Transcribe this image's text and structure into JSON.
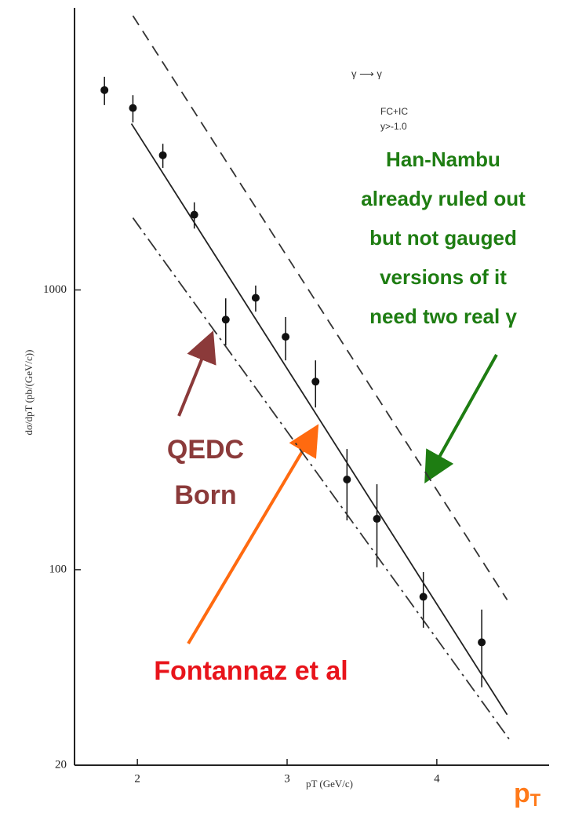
{
  "chart_data": {
    "type": "scatter",
    "y_label": "dσ/dpT   (pb/(GeV/c))",
    "x_label": "pT   (GeV/c)",
    "xlim": [
      1.58,
      4.75
    ],
    "ylim": [
      20,
      10000
    ],
    "log_y": true,
    "xticks": [
      2,
      3,
      4
    ],
    "yticks": [
      20,
      100,
      1000
    ],
    "series": [
      {
        "type": "points",
        "color": "#111111",
        "x": [
          1.78,
          1.97,
          2.17,
          2.38,
          2.59,
          2.79,
          2.99,
          3.19,
          3.4,
          3.6,
          3.91,
          4.3
        ],
        "values": [
          5180,
          4470,
          3030,
          1857,
          783,
          937,
          680,
          470,
          210,
          152,
          80,
          55
        ],
        "errors": [
          600,
          500,
          300,
          200,
          150,
          100,
          120,
          90,
          60,
          50,
          18,
          17
        ]
      },
      {
        "type": "line",
        "color": "#222222",
        "dash": "none",
        "x": [
          1.96,
          4.47
        ],
        "values": [
          3930,
          30.3
        ]
      },
      {
        "type": "line",
        "color": "#333333",
        "dash": "14 9",
        "x": [
          1.97,
          4.47
        ],
        "values": [
          9550,
          78
        ]
      },
      {
        "type": "line",
        "color": "#333333",
        "dash": "18 6 3 6",
        "x": [
          1.97,
          4.49
        ],
        "values": [
          1810,
          24.5
        ]
      }
    ],
    "annotations": {
      "process": "γ ⟶ γ",
      "fcic": "FC+IC",
      "cut": "y>-1.0",
      "han_nambu": [
        "Han-Nambu",
        "already ruled out",
        "but not gauged",
        "versions of it",
        "need two real γ"
      ],
      "qedc": [
        "QEDC",
        "Born"
      ],
      "fontannaz": "Fontannaz et al",
      "pt_main": "p",
      "pt_sub": "T"
    }
  }
}
